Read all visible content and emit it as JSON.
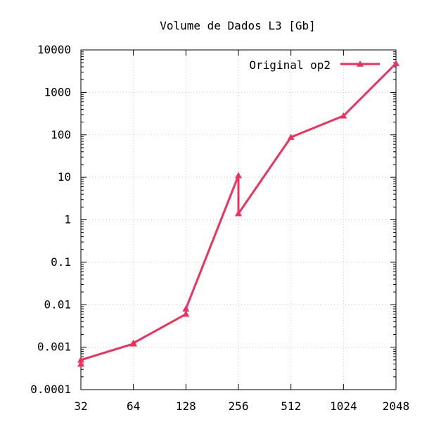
{
  "chart_data": {
    "type": "line",
    "title": "Volume de Dados L3 [Gb]",
    "xlabel": "",
    "ylabel": "",
    "x_scale": "log2",
    "y_scale": "log10",
    "xlim": [
      32,
      2048
    ],
    "ylim": [
      0.0001,
      10000
    ],
    "x_ticks": [
      "32",
      "64",
      "128",
      "256",
      "512",
      "1024",
      "2048"
    ],
    "y_ticks": [
      "10000",
      "1000",
      "100",
      "10",
      "1",
      "0.1",
      "0.01",
      "0.001",
      "0.0001"
    ],
    "grid": true,
    "legend_position": "top-right",
    "series": [
      {
        "name": "Original op2",
        "color": "#f0305a",
        "marker": "triangle",
        "points": [
          {
            "x": 32,
            "y": 0.0004
          },
          {
            "x": 32,
            "y": 0.0005
          },
          {
            "x": 64,
            "y": 0.0012
          },
          {
            "x": 64,
            "y": 0.00125
          },
          {
            "x": 128,
            "y": 0.006
          },
          {
            "x": 128,
            "y": 0.008
          },
          {
            "x": 256,
            "y": 11
          },
          {
            "x": 256,
            "y": 1.4
          },
          {
            "x": 512,
            "y": 88
          },
          {
            "x": 1024,
            "y": 280
          },
          {
            "x": 2048,
            "y": 4800
          }
        ]
      }
    ]
  }
}
